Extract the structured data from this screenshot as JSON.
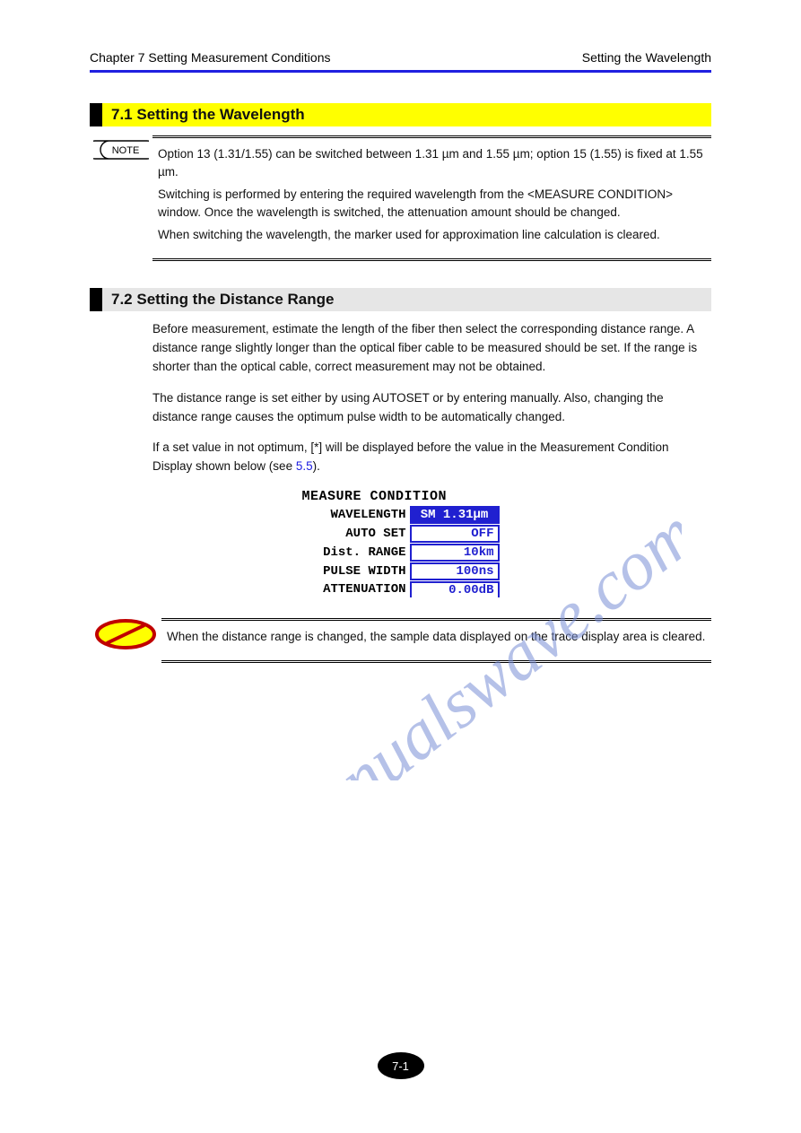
{
  "header": {
    "left": "Chapter 7 Setting Measurement Conditions",
    "right": "Setting the Wavelength"
  },
  "section1": {
    "title": "7.1 Setting the Wavelength"
  },
  "note1": {
    "label": "NOTE",
    "lines": [
      "Option 13 (1.31/1.55) can be switched between 1.31 µm and 1.55 µm; option 15 (1.55) is fixed at 1.55 µm.",
      "Switching is performed by entering the required wavelength from the <MEASURE CONDITION> window. Once the wavelength is switched, the attenuation amount should be changed.",
      "When switching the wavelength, the marker used for approximation line calculation is cleared."
    ]
  },
  "section2": {
    "title": "7.2 Setting the Distance Range"
  },
  "body1": {
    "p1": "Before measurement, estimate the length of the fiber then select the corresponding distance range. A distance range slightly longer than the optical fiber cable to be measured should be set. If the range is shorter than the optical cable, correct measurement may not be obtained.",
    "p2": "The distance range is set either by using AUTOSET or by entering manually. Also, changing the distance range causes the optimum pulse width to be automatically changed.",
    "p3_prefix": "If a set value in not optimum, [*] will be displayed before the value in the Measurement Condition Display shown below (see ",
    "p3_link": "5.5",
    "p3_suffix": ")."
  },
  "figure": {
    "title": "MEASURE CONDITION",
    "rows": [
      {
        "label": "WAVELENGTH",
        "value": "SM 1.31µm",
        "selected": true
      },
      {
        "label": "AUTO SET",
        "value": "OFF",
        "selected": false
      },
      {
        "label": "Dist. RANGE",
        "value": "10km",
        "selected": false
      },
      {
        "label": "PULSE WIDTH",
        "value": "100ns",
        "selected": false
      },
      {
        "label": "ATTENUATION",
        "value": "0.00dB",
        "selected": false,
        "cut": true
      }
    ]
  },
  "caution": {
    "label": "CAUTION",
    "text": "When the distance range is changed, the sample data displayed on the trace display area is cleared."
  },
  "pagenum": "7-1",
  "watermark": {
    "text": "manualswave.com",
    "color": "#7a8fd6"
  }
}
